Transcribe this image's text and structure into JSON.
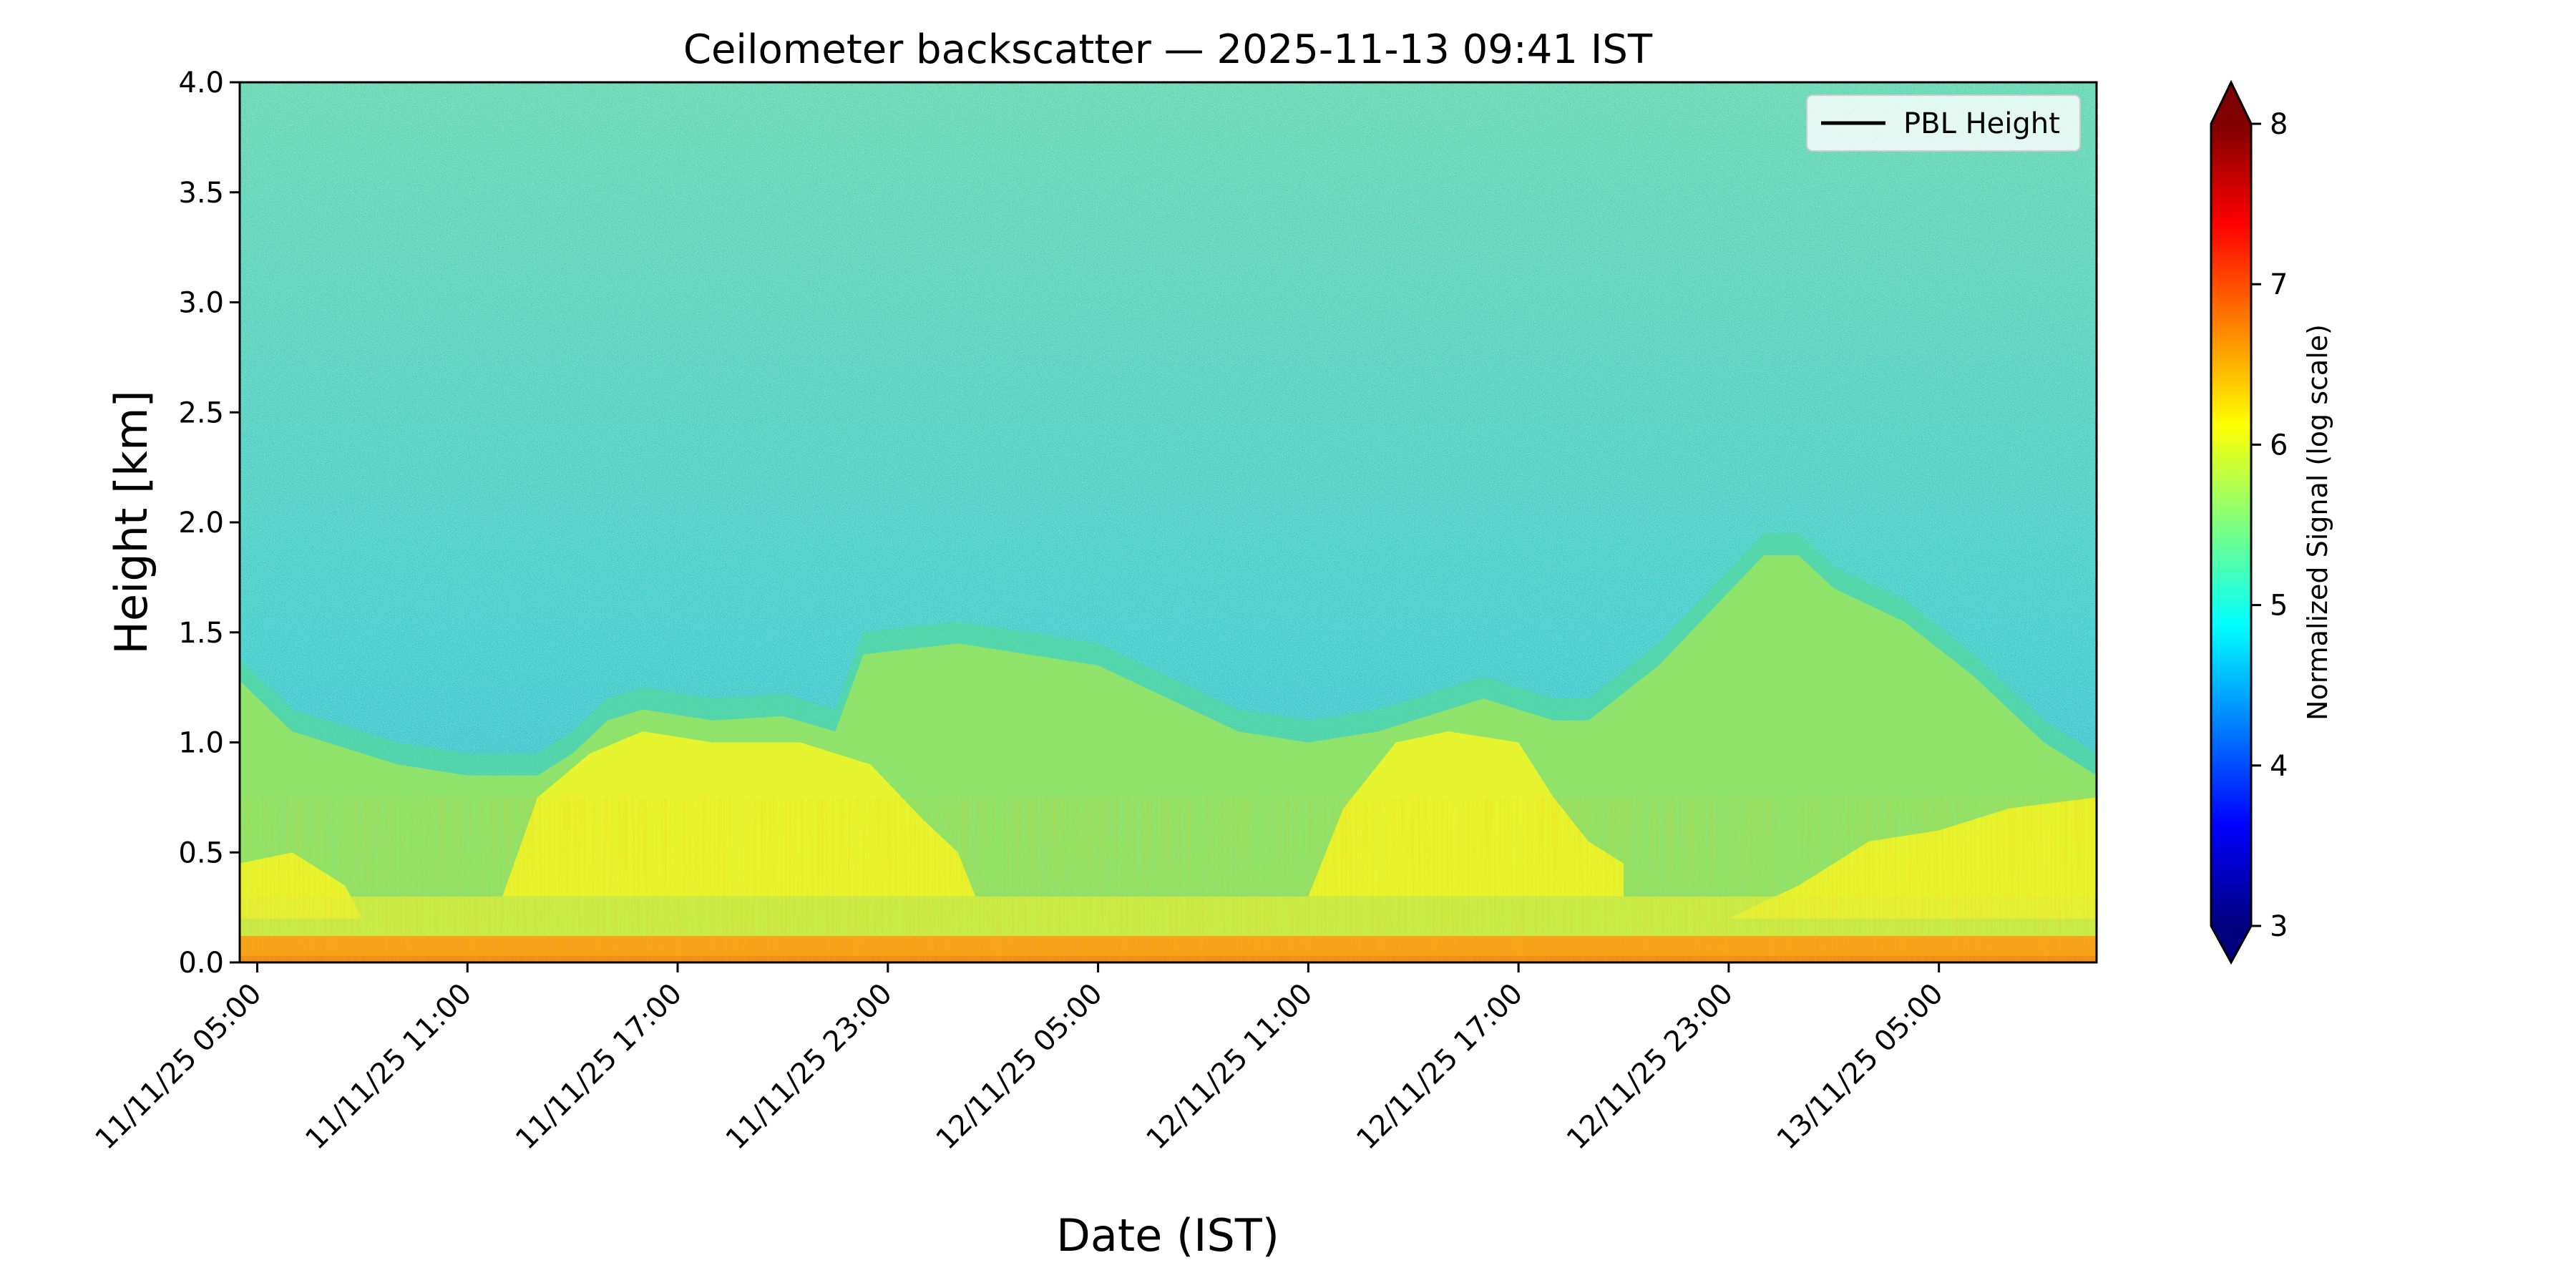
{
  "chart_data": {
    "type": "heatmap",
    "title": "Ceilometer backscatter — 2025-11-13 09:41 IST",
    "xlabel": "Date (IST)",
    "ylabel": "Height [km]",
    "x_range_hours": [
      -0.5,
      52.5
    ],
    "x_ticks": [
      {
        "label": "11/11/25 05:00",
        "hours": 0
      },
      {
        "label": "11/11/25 11:00",
        "hours": 6
      },
      {
        "label": "11/11/25 17:00",
        "hours": 12
      },
      {
        "label": "11/11/25 23:00",
        "hours": 18
      },
      {
        "label": "12/11/25 05:00",
        "hours": 24
      },
      {
        "label": "12/11/25 11:00",
        "hours": 30
      },
      {
        "label": "12/11/25 17:00",
        "hours": 36
      },
      {
        "label": "12/11/25 23:00",
        "hours": 42
      },
      {
        "label": "13/11/25 05:00",
        "hours": 48
      }
    ],
    "ylim": [
      0.0,
      4.0
    ],
    "y_ticks": [
      "0.0",
      "0.5",
      "1.0",
      "1.5",
      "2.0",
      "2.5",
      "3.0",
      "3.5",
      "4.0"
    ],
    "colorbar": {
      "label": "Normalized Signal (log scale)",
      "range": [
        3,
        8
      ],
      "ticks": [
        "3",
        "4",
        "5",
        "6",
        "7",
        "8"
      ],
      "colormap": "jet",
      "extend": "both"
    },
    "legend": {
      "entries": [
        "PBL Height"
      ],
      "location": "upper right"
    },
    "layers": [
      {
        "name": "near-surface band (signal ~7)",
        "top_km": 0.12
      },
      {
        "name": "aerosol layer top (signal ~6)",
        "top_km": [
          [
            -0.5,
            1.28
          ],
          [
            1,
            1.05
          ],
          [
            4,
            0.9
          ],
          [
            6,
            0.85
          ],
          [
            8,
            0.85
          ],
          [
            9,
            0.95
          ],
          [
            10,
            1.1
          ],
          [
            11,
            1.15
          ],
          [
            13,
            1.1
          ],
          [
            15,
            1.12
          ],
          [
            16.5,
            1.05
          ],
          [
            17.3,
            1.4
          ],
          [
            20,
            1.45
          ],
          [
            22,
            1.4
          ],
          [
            24,
            1.35
          ],
          [
            26,
            1.2
          ],
          [
            28,
            1.05
          ],
          [
            30,
            1.0
          ],
          [
            32,
            1.05
          ],
          [
            33,
            1.1
          ],
          [
            35,
            1.2
          ],
          [
            37,
            1.1
          ],
          [
            38,
            1.1
          ],
          [
            40,
            1.35
          ],
          [
            41.5,
            1.6
          ],
          [
            43,
            1.85
          ],
          [
            44,
            1.85
          ],
          [
            45,
            1.7
          ],
          [
            47,
            1.55
          ],
          [
            49,
            1.3
          ],
          [
            51,
            1.0
          ],
          [
            52.5,
            0.85
          ]
        ]
      }
    ]
  }
}
